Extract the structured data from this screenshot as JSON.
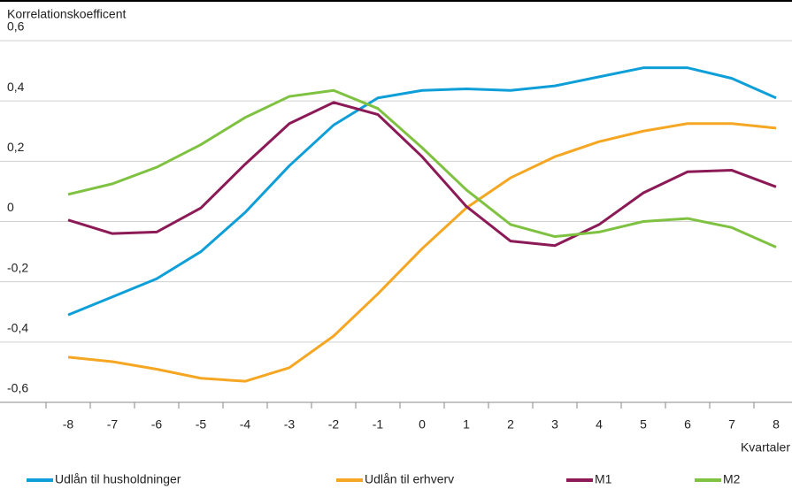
{
  "chart_data": {
    "type": "line",
    "y_axis_title": "Korrelationskoefficent",
    "x_axis_title": "Kvartaler",
    "x": [
      -8,
      -7,
      -6,
      -5,
      -4,
      -3,
      -2,
      -1,
      0,
      1,
      2,
      3,
      4,
      5,
      6,
      7,
      8
    ],
    "xlim": [
      -8.5,
      8.5
    ],
    "ylim": [
      -0.6,
      0.6
    ],
    "yticks": [
      {
        "value": -0.6,
        "label": "-0,6"
      },
      {
        "value": -0.4,
        "label": "-0,4"
      },
      {
        "value": -0.2,
        "label": "-0,2"
      },
      0,
      {
        "value": 0.2,
        "label": "0,2"
      },
      {
        "value": 0.4,
        "label": "0,4"
      },
      {
        "value": 0.6,
        "label": "0,6"
      }
    ],
    "grid": true,
    "legend": "bottom",
    "series": [
      {
        "name": "Udlån til husholdninger",
        "color": "#0e9ed8",
        "values": [
          -0.31,
          -0.25,
          -0.19,
          -0.1,
          0.03,
          0.185,
          0.32,
          0.41,
          0.435,
          0.44,
          0.435,
          0.45,
          0.48,
          0.51,
          0.51,
          0.475,
          0.41
        ]
      },
      {
        "name": "Udlån til erhverv",
        "color": "#f5a623",
        "values": [
          -0.45,
          -0.465,
          -0.49,
          -0.52,
          -0.53,
          -0.485,
          -0.38,
          -0.24,
          -0.09,
          0.045,
          0.145,
          0.215,
          0.265,
          0.3,
          0.325,
          0.325,
          0.31
        ]
      },
      {
        "name": "M1",
        "color": "#8b1a56",
        "values": [
          0.005,
          -0.04,
          -0.035,
          0.045,
          0.19,
          0.325,
          0.395,
          0.355,
          0.215,
          0.05,
          -0.065,
          -0.08,
          -0.01,
          0.095,
          0.165,
          0.17,
          0.115
        ]
      },
      {
        "name": "M2",
        "color": "#7fc241",
        "values": [
          0.09,
          0.125,
          0.18,
          0.255,
          0.345,
          0.415,
          0.435,
          0.375,
          0.245,
          0.105,
          -0.01,
          -0.05,
          -0.035,
          0,
          0.01,
          -0.02,
          -0.085
        ]
      }
    ]
  }
}
